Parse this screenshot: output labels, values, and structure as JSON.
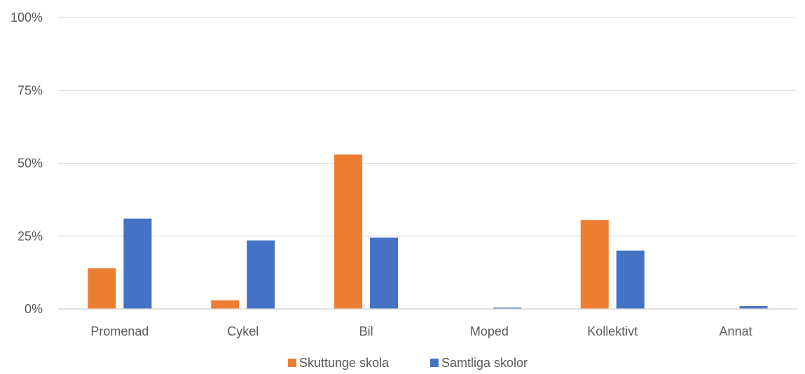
{
  "chart_data": {
    "type": "bar",
    "categories": [
      "Promenad",
      "Cykel",
      "Bil",
      "Moped",
      "Kollektivt",
      "Annat"
    ],
    "series": [
      {
        "name": "Skuttunge skola",
        "color": "#ed7d31",
        "values": [
          14,
          3,
          53,
          0,
          30.5,
          0
        ]
      },
      {
        "name": "Samtliga skolor",
        "color": "#4472c4",
        "values": [
          31,
          23.5,
          24.5,
          0.5,
          20,
          1
        ]
      }
    ],
    "ylim": [
      0,
      100
    ],
    "yticks": [
      0,
      25,
      50,
      75,
      100
    ],
    "ytick_labels": [
      "0%",
      "25%",
      "50%",
      "75%",
      "100%"
    ],
    "grid": true,
    "legend_position": "bottom",
    "title": "",
    "xlabel": "",
    "ylabel": ""
  }
}
